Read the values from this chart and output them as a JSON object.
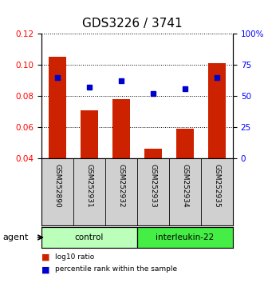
{
  "title": "GDS3226 / 3741",
  "categories": [
    "GSM252890",
    "GSM252931",
    "GSM252932",
    "GSM252933",
    "GSM252934",
    "GSM252935"
  ],
  "bar_values": [
    0.105,
    0.071,
    0.078,
    0.046,
    0.059,
    0.101
  ],
  "percentile_values": [
    65,
    57,
    62,
    52,
    56,
    65
  ],
  "bar_color": "#cc2200",
  "marker_color": "#0000cc",
  "ylim_left": [
    0.04,
    0.12
  ],
  "ylim_right": [
    0,
    100
  ],
  "yticks_left": [
    0.04,
    0.06,
    0.08,
    0.1,
    0.12
  ],
  "ytick_labels_left": [
    "0.04",
    "0.06",
    "0.08",
    "0.10",
    "0.12"
  ],
  "yticks_right": [
    0,
    25,
    50,
    75,
    100
  ],
  "ytick_labels_right": [
    "0",
    "25",
    "50",
    "75",
    "100%"
  ],
  "groups": [
    {
      "label": "control",
      "indices": [
        0,
        1,
        2
      ],
      "color": "#bbffbb"
    },
    {
      "label": "interleukin-22",
      "indices": [
        3,
        4,
        5
      ],
      "color": "#44ee44"
    }
  ],
  "agent_label": "agent",
  "legend_items": [
    {
      "label": "log10 ratio",
      "color": "#cc2200"
    },
    {
      "label": "percentile rank within the sample",
      "color": "#0000cc"
    }
  ],
  "title_fontsize": 11,
  "tick_fontsize": 7.5,
  "background_color": "#ffffff",
  "plot_bg_color": "#ffffff",
  "xticklabel_area_color": "#d0d0d0",
  "grid_linestyle": "dotted"
}
